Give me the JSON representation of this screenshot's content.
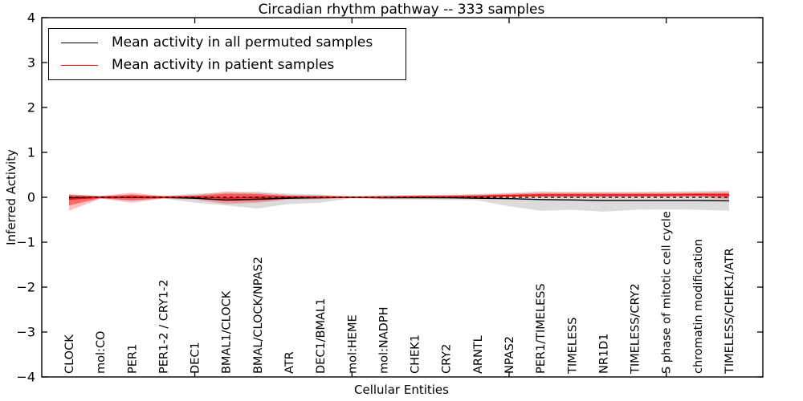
{
  "chart_data": {
    "type": "line",
    "title": "Circadian rhythm pathway -- 333 samples",
    "xlabel": "Cellular Entities",
    "ylabel": "Inferred Activity",
    "ylim": [
      -4,
      4
    ],
    "yticks": [
      4,
      3,
      2,
      1,
      0,
      -1,
      -2,
      -3,
      -4
    ],
    "ytick_labels": [
      "4",
      "3",
      "2",
      "1",
      "0",
      "−1",
      "−2",
      "−3",
      "−4"
    ],
    "xticks_at_category_index": [
      4,
      9,
      14,
      19
    ],
    "grid": false,
    "legend_position": "upper left",
    "categories": [
      "CLOCK",
      "mol:CO",
      "PER1",
      "PER1-2 / CRY1-2",
      "DEC1",
      "BMAL1/CLOCK",
      "BMAL/CLOCK/NPAS2",
      "ATR",
      "DEC1/BMAL1",
      "mol:HEME",
      "mol:NADPH",
      "CHEK1",
      "CRY2",
      "ARNTL",
      "NPAS2",
      "PER1/TIMELESS",
      "TIMELESS",
      "NR1D1",
      "TIMELESS/CRY2",
      "S phase of mitotic cell cycle",
      "chromatin modification",
      "TIMELESS/CHEK1/ATR"
    ],
    "legend": {
      "items": [
        {
          "label": "Mean activity in all permuted samples",
          "color": "#000000"
        },
        {
          "label": "Mean activity in patient samples",
          "color": "#ff0000"
        }
      ]
    },
    "series": [
      {
        "name": "permuted-mean-line",
        "label": "Mean activity in all permuted samples",
        "color": "#000000",
        "style": "solid",
        "values": [
          -0.01,
          0,
          0,
          0,
          -0.02,
          -0.06,
          -0.04,
          -0.02,
          -0.01,
          0,
          -0.01,
          -0.01,
          -0.01,
          -0.02,
          -0.03,
          -0.05,
          -0.06,
          -0.07,
          -0.07,
          -0.07,
          -0.07,
          -0.08
        ]
      },
      {
        "name": "patient-mean-line",
        "label": "Mean activity in patient samples",
        "color": "#ff0000",
        "style": "solid",
        "values": [
          -0.04,
          0,
          0.01,
          0,
          0.01,
          -0.02,
          0,
          0.01,
          0,
          0,
          0,
          0.01,
          0.01,
          0.02,
          0.04,
          0.05,
          0.05,
          0.05,
          0.05,
          0.05,
          0.06,
          0.05
        ]
      }
    ],
    "bands": [
      {
        "name": "permuted-std-band",
        "color": "#7f7f7f",
        "opacity": 0.28,
        "upper": [
          0.06,
          0.03,
          0.05,
          0.03,
          0.08,
          0.1,
          0.12,
          0.08,
          0.06,
          0.02,
          0.05,
          0.05,
          0.06,
          0.07,
          0.1,
          0.13,
          0.12,
          0.12,
          0.12,
          0.13,
          0.14,
          0.15
        ],
        "lower": [
          -0.06,
          -0.03,
          -0.05,
          -0.03,
          -0.12,
          -0.18,
          -0.25,
          -0.15,
          -0.12,
          -0.02,
          -0.05,
          -0.05,
          -0.06,
          -0.07,
          -0.2,
          -0.3,
          -0.28,
          -0.32,
          -0.28,
          -0.27,
          -0.28,
          -0.3
        ]
      },
      {
        "name": "patient-std-band-outer",
        "color": "#ff0000",
        "opacity": 0.25,
        "upper": [
          0.07,
          0.03,
          0.1,
          0.03,
          0.05,
          0.13,
          0.1,
          0.05,
          0.04,
          0.02,
          0.03,
          0.04,
          0.05,
          0.06,
          0.08,
          0.1,
          0.1,
          0.1,
          0.1,
          0.1,
          0.11,
          0.12
        ],
        "lower": [
          -0.3,
          -0.03,
          -0.12,
          -0.03,
          -0.05,
          -0.15,
          -0.12,
          -0.05,
          -0.04,
          -0.02,
          -0.03,
          -0.02,
          -0.03,
          -0.02,
          0.0,
          0.0,
          0.0,
          0.0,
          0.01,
          0.01,
          0.01,
          -0.05
        ]
      },
      {
        "name": "patient-std-band-inner",
        "color": "#ff0000",
        "opacity": 0.45,
        "upper": [
          0.05,
          0.02,
          0.06,
          0.02,
          0.03,
          0.08,
          0.07,
          0.03,
          0.03,
          0.01,
          0.02,
          0.03,
          0.03,
          0.04,
          0.06,
          0.08,
          0.08,
          0.08,
          0.08,
          0.08,
          0.09,
          0.09
        ],
        "lower": [
          -0.18,
          -0.02,
          -0.07,
          -0.02,
          -0.03,
          -0.09,
          -0.08,
          -0.03,
          -0.02,
          -0.01,
          -0.01,
          -0.01,
          -0.01,
          0.0,
          0.01,
          0.02,
          0.02,
          0.02,
          0.02,
          0.02,
          0.03,
          0.0
        ]
      }
    ],
    "zero_line": {
      "value": 0,
      "color": "#000000",
      "style": "dashed"
    }
  }
}
